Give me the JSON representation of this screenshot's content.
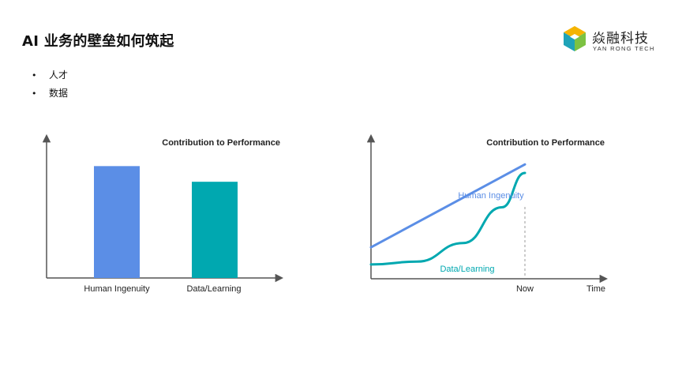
{
  "slide": {
    "title": "AI 业务的壁垒如何筑起",
    "bullets": [
      "人才",
      "数据"
    ]
  },
  "logo": {
    "name": "焱融科技",
    "subtitle": "YAN RONG TECH",
    "icon": "cube-hexagon-logo-icon"
  },
  "colors": {
    "blue": "#5b8ee6",
    "teal": "#00a8b0",
    "axis": "#555555",
    "dashed": "#999999"
  },
  "chart_data": [
    {
      "type": "bar",
      "title": "Contribution to Performance",
      "categories": [
        "Human Ingenuity",
        "Data/Learning"
      ],
      "values": [
        1.0,
        0.86
      ],
      "ylim": [
        0,
        1.2
      ],
      "xlabel": "",
      "ylabel": "",
      "grid": false
    },
    {
      "type": "line",
      "title": "Contribution to Performance",
      "x_tick_labels": [
        "Now",
        "Time"
      ],
      "series": [
        {
          "name": "Human Ingenuity",
          "x": [
            0,
            1
          ],
          "y": [
            0.22,
            0.8
          ]
        },
        {
          "name": "Data/Learning",
          "x": [
            0,
            0.3,
            0.6,
            0.85,
            1
          ],
          "y": [
            0.1,
            0.12,
            0.25,
            0.5,
            0.74
          ]
        }
      ],
      "ylim": [
        0,
        1
      ],
      "grid": false
    }
  ]
}
